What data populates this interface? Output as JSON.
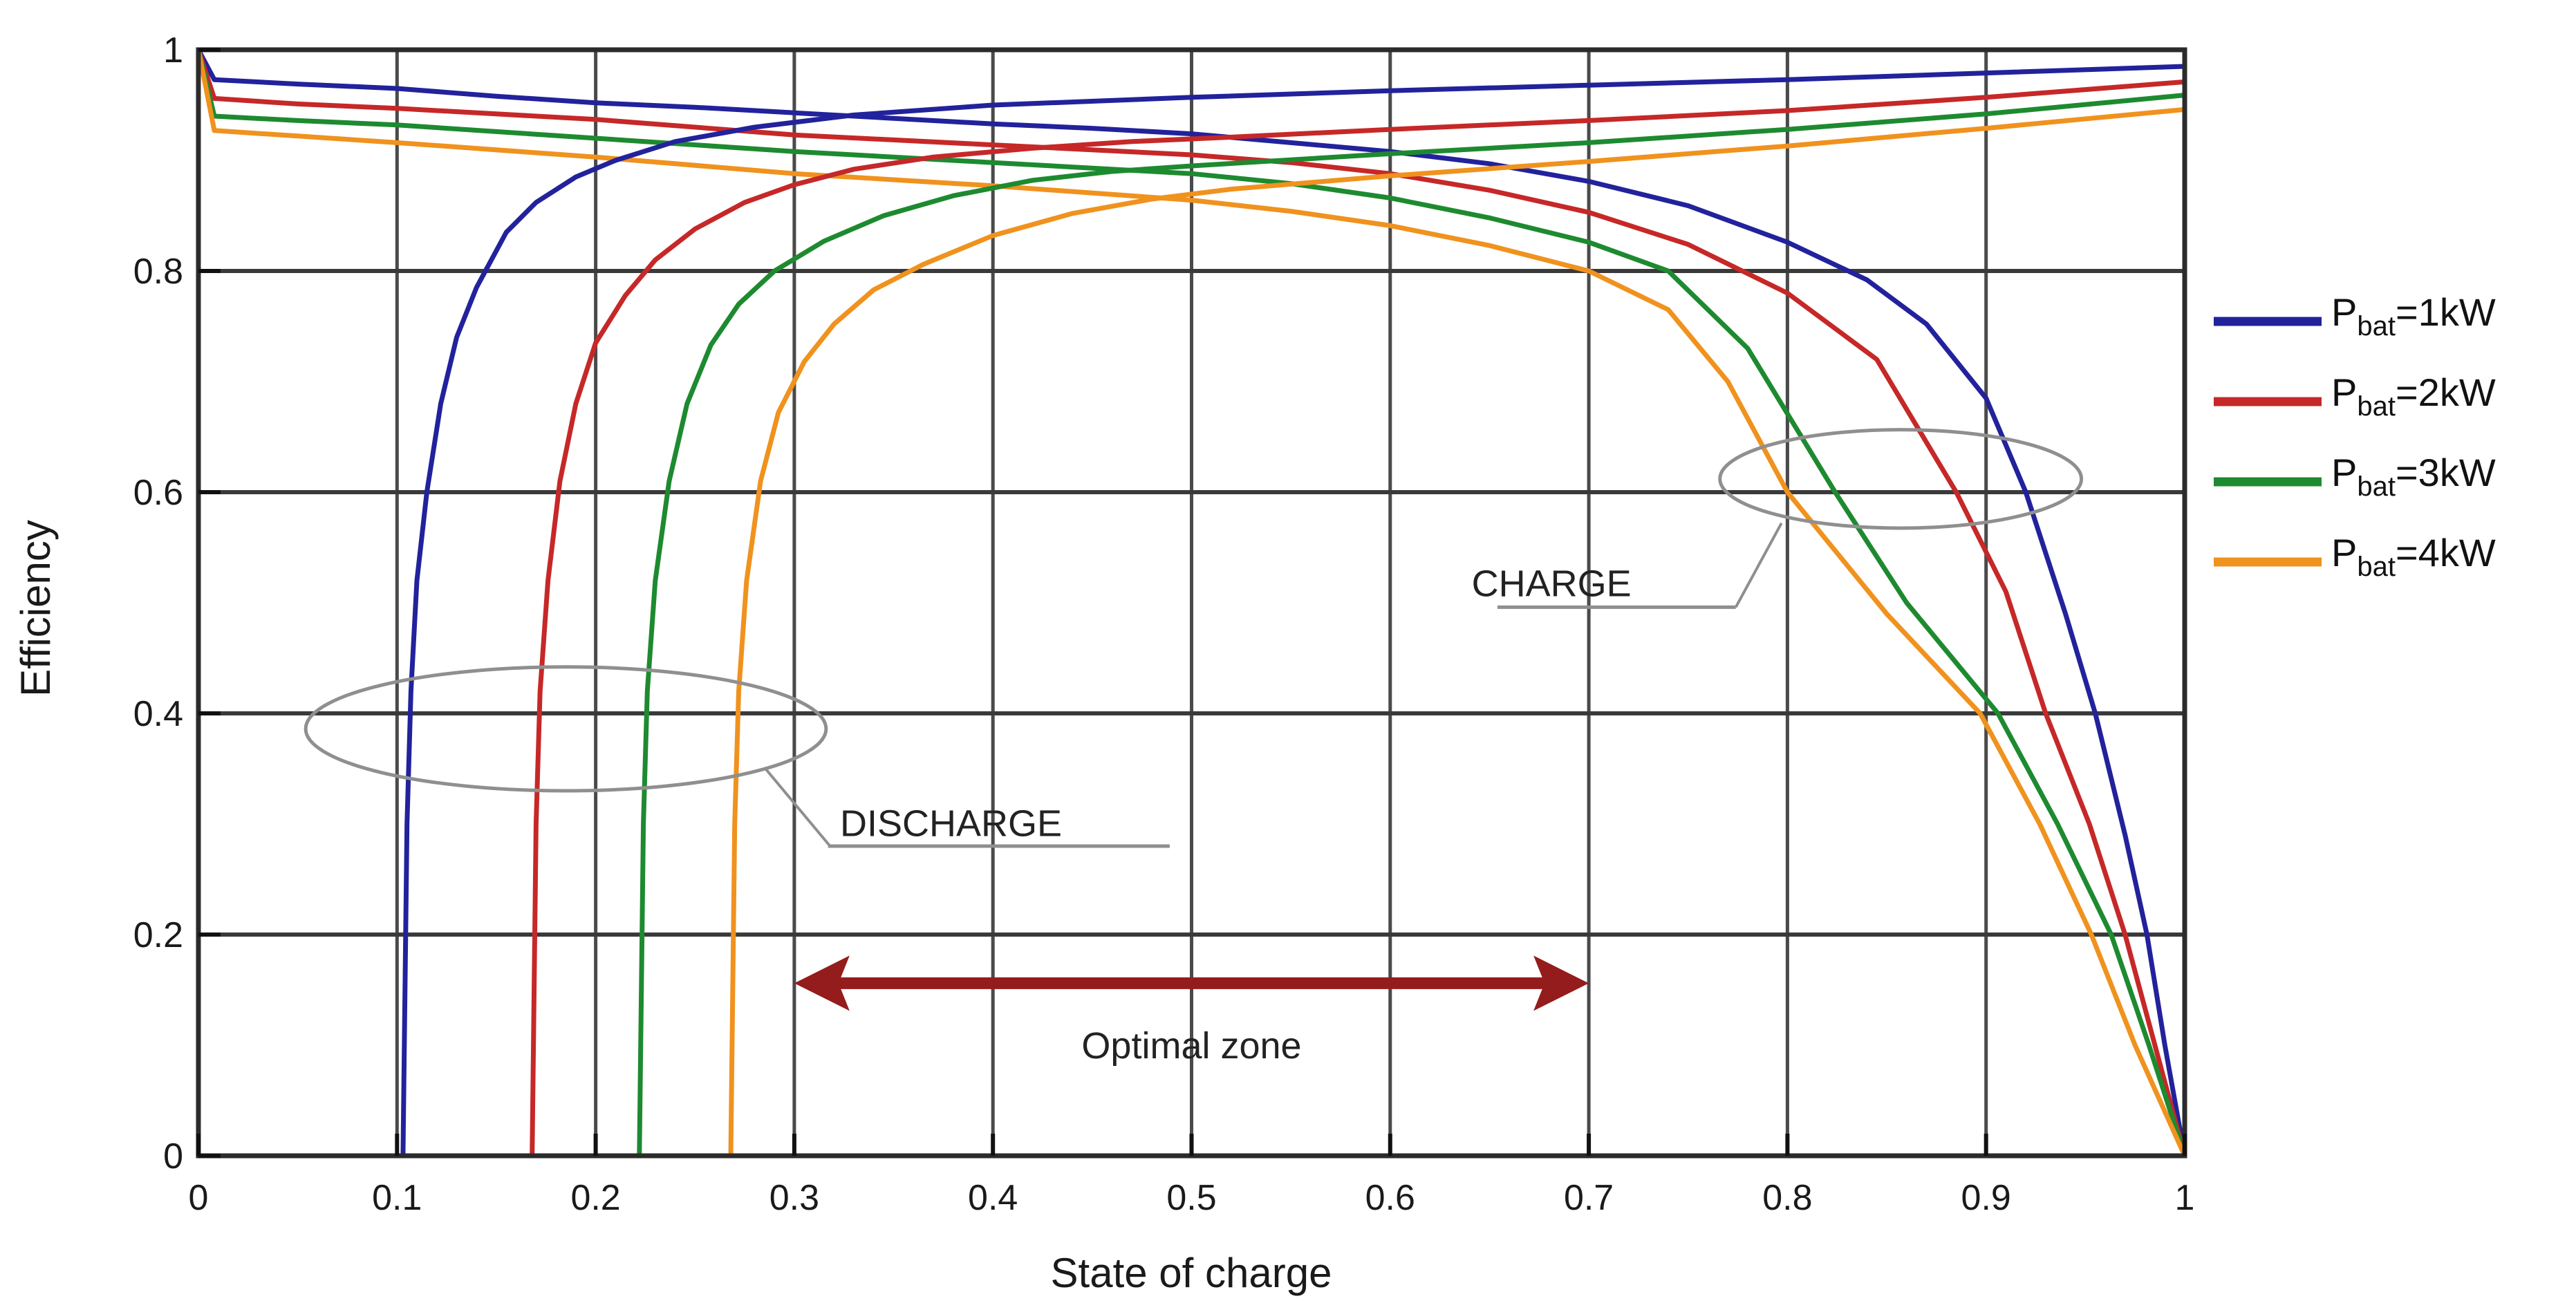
{
  "chart_data": {
    "type": "line",
    "title": "",
    "xlabel": "State of charge",
    "ylabel": "Efficiency",
    "xlim": [
      0,
      1
    ],
    "ylim": [
      0,
      1
    ],
    "grid": true,
    "legend_position": "right-outside",
    "x_ticks": [
      {
        "value": 0,
        "label": "0"
      },
      {
        "value": 0.1,
        "label": "0.1"
      },
      {
        "value": 0.2,
        "label": "0.2"
      },
      {
        "value": 0.3,
        "label": "0.3"
      },
      {
        "value": 0.4,
        "label": "0.4"
      },
      {
        "value": 0.5,
        "label": "0.5"
      },
      {
        "value": 0.6,
        "label": "0.6"
      },
      {
        "value": 0.7,
        "label": "0.7"
      },
      {
        "value": 0.8,
        "label": "0.8"
      },
      {
        "value": 0.9,
        "label": "0.9"
      },
      {
        "value": 1,
        "label": "1"
      }
    ],
    "y_ticks": [
      {
        "value": 0,
        "label": "0"
      },
      {
        "value": 0.2,
        "label": "0.2"
      },
      {
        "value": 0.4,
        "label": "0.4"
      },
      {
        "value": 0.6,
        "label": "0.6"
      },
      {
        "value": 0.8,
        "label": "0.8"
      },
      {
        "value": 1,
        "label": "1"
      }
    ],
    "colors": {
      "p1kW": "#22229c",
      "p2kW": "#c62828",
      "p3kW": "#1e8a30",
      "p4kW": "#f0921e",
      "grid": "#4a4a4a",
      "frame": "#2b2b2b",
      "annotation_gray": "#8f8f8f",
      "arrow_dark_red": "#951c1c"
    },
    "series": [
      {
        "name": "Pbat=1kW charge",
        "group": "CHARGE",
        "power_kW": 1,
        "color": "#22229c",
        "points": [
          [
            0,
            1
          ],
          [
            0.008,
            0.973
          ],
          [
            0.05,
            0.969
          ],
          [
            0.1,
            0.965
          ],
          [
            0.15,
            0.958
          ],
          [
            0.2,
            0.952
          ],
          [
            0.25,
            0.948
          ],
          [
            0.3,
            0.943
          ],
          [
            0.35,
            0.938
          ],
          [
            0.4,
            0.933
          ],
          [
            0.45,
            0.929
          ],
          [
            0.5,
            0.924
          ],
          [
            0.55,
            0.916
          ],
          [
            0.6,
            0.908
          ],
          [
            0.65,
            0.897
          ],
          [
            0.7,
            0.881
          ],
          [
            0.75,
            0.859
          ],
          [
            0.8,
            0.826
          ],
          [
            0.84,
            0.792
          ],
          [
            0.87,
            0.752
          ],
          [
            0.9,
            0.685
          ],
          [
            0.92,
            0.6
          ],
          [
            0.94,
            0.49
          ],
          [
            0.955,
            0.4
          ],
          [
            0.97,
            0.29
          ],
          [
            0.981,
            0.2
          ],
          [
            0.99,
            0.1
          ],
          [
            1,
            0
          ]
        ]
      },
      {
        "name": "Pbat=2kW charge",
        "group": "CHARGE",
        "power_kW": 2,
        "color": "#c62828",
        "points": [
          [
            0,
            1
          ],
          [
            0.008,
            0.956
          ],
          [
            0.05,
            0.951
          ],
          [
            0.1,
            0.947
          ],
          [
            0.2,
            0.937
          ],
          [
            0.3,
            0.923
          ],
          [
            0.4,
            0.914
          ],
          [
            0.5,
            0.905
          ],
          [
            0.55,
            0.898
          ],
          [
            0.6,
            0.888
          ],
          [
            0.65,
            0.873
          ],
          [
            0.7,
            0.853
          ],
          [
            0.75,
            0.824
          ],
          [
            0.8,
            0.78
          ],
          [
            0.845,
            0.72
          ],
          [
            0.885,
            0.6
          ],
          [
            0.91,
            0.51
          ],
          [
            0.93,
            0.4
          ],
          [
            0.952,
            0.3
          ],
          [
            0.97,
            0.2
          ],
          [
            0.985,
            0.1
          ],
          [
            1,
            0
          ]
        ]
      },
      {
        "name": "Pbat=3kW charge",
        "group": "CHARGE",
        "power_kW": 3,
        "color": "#1e8a30",
        "points": [
          [
            0,
            1
          ],
          [
            0.008,
            0.94
          ],
          [
            0.05,
            0.936
          ],
          [
            0.1,
            0.932
          ],
          [
            0.2,
            0.92
          ],
          [
            0.3,
            0.908
          ],
          [
            0.4,
            0.898
          ],
          [
            0.5,
            0.888
          ],
          [
            0.55,
            0.879
          ],
          [
            0.6,
            0.866
          ],
          [
            0.65,
            0.848
          ],
          [
            0.7,
            0.826
          ],
          [
            0.74,
            0.8
          ],
          [
            0.78,
            0.73
          ],
          [
            0.824,
            0.6
          ],
          [
            0.86,
            0.5
          ],
          [
            0.906,
            0.4
          ],
          [
            0.936,
            0.3
          ],
          [
            0.963,
            0.2
          ],
          [
            0.982,
            0.1
          ],
          [
            1,
            0
          ]
        ]
      },
      {
        "name": "Pbat=4kW charge",
        "group": "CHARGE",
        "power_kW": 4,
        "color": "#f0921e",
        "points": [
          [
            0,
            1
          ],
          [
            0.008,
            0.927
          ],
          [
            0.05,
            0.922
          ],
          [
            0.1,
            0.916
          ],
          [
            0.2,
            0.903
          ],
          [
            0.3,
            0.888
          ],
          [
            0.4,
            0.877
          ],
          [
            0.5,
            0.864
          ],
          [
            0.55,
            0.854
          ],
          [
            0.6,
            0.841
          ],
          [
            0.65,
            0.823
          ],
          [
            0.7,
            0.8
          ],
          [
            0.74,
            0.765
          ],
          [
            0.77,
            0.7
          ],
          [
            0.8,
            0.6
          ],
          [
            0.85,
            0.49
          ],
          [
            0.897,
            0.4
          ],
          [
            0.927,
            0.3
          ],
          [
            0.953,
            0.2
          ],
          [
            0.975,
            0.1
          ],
          [
            1,
            0
          ]
        ]
      },
      {
        "name": "Pbat=1kW discharge",
        "group": "DISCHARGE",
        "power_kW": 1,
        "color": "#22229c",
        "points": [
          [
            0.103,
            0
          ],
          [
            0.105,
            0.3
          ],
          [
            0.107,
            0.42
          ],
          [
            0.11,
            0.52
          ],
          [
            0.115,
            0.6
          ],
          [
            0.122,
            0.68
          ],
          [
            0.13,
            0.74
          ],
          [
            0.14,
            0.785
          ],
          [
            0.155,
            0.835
          ],
          [
            0.17,
            0.862
          ],
          [
            0.19,
            0.885
          ],
          [
            0.21,
            0.9
          ],
          [
            0.24,
            0.917
          ],
          [
            0.28,
            0.93
          ],
          [
            0.33,
            0.941
          ],
          [
            0.4,
            0.95
          ],
          [
            0.5,
            0.957
          ],
          [
            0.6,
            0.963
          ],
          [
            0.7,
            0.968
          ],
          [
            0.8,
            0.973
          ],
          [
            0.9,
            0.979
          ],
          [
            1,
            0.985
          ]
        ]
      },
      {
        "name": "Pbat=2kW discharge",
        "group": "DISCHARGE",
        "power_kW": 2,
        "color": "#c62828",
        "points": [
          [
            0.168,
            0
          ],
          [
            0.17,
            0.3
          ],
          [
            0.172,
            0.42
          ],
          [
            0.176,
            0.52
          ],
          [
            0.182,
            0.61
          ],
          [
            0.19,
            0.68
          ],
          [
            0.2,
            0.735
          ],
          [
            0.215,
            0.778
          ],
          [
            0.23,
            0.81
          ],
          [
            0.25,
            0.838
          ],
          [
            0.275,
            0.862
          ],
          [
            0.3,
            0.878
          ],
          [
            0.33,
            0.892
          ],
          [
            0.37,
            0.903
          ],
          [
            0.42,
            0.911
          ],
          [
            0.47,
            0.917
          ],
          [
            0.52,
            0.921
          ],
          [
            0.6,
            0.928
          ],
          [
            0.7,
            0.936
          ],
          [
            0.8,
            0.945
          ],
          [
            0.9,
            0.957
          ],
          [
            1,
            0.971
          ]
        ]
      },
      {
        "name": "Pbat=3kW discharge",
        "group": "DISCHARGE",
        "power_kW": 3,
        "color": "#1e8a30",
        "points": [
          [
            0.222,
            0
          ],
          [
            0.224,
            0.3
          ],
          [
            0.226,
            0.42
          ],
          [
            0.23,
            0.52
          ],
          [
            0.237,
            0.61
          ],
          [
            0.246,
            0.68
          ],
          [
            0.258,
            0.733
          ],
          [
            0.272,
            0.77
          ],
          [
            0.29,
            0.8
          ],
          [
            0.315,
            0.827
          ],
          [
            0.345,
            0.85
          ],
          [
            0.38,
            0.868
          ],
          [
            0.42,
            0.882
          ],
          [
            0.46,
            0.89
          ],
          [
            0.5,
            0.895
          ],
          [
            0.6,
            0.906
          ],
          [
            0.7,
            0.916
          ],
          [
            0.8,
            0.928
          ],
          [
            0.9,
            0.942
          ],
          [
            1,
            0.959
          ]
        ]
      },
      {
        "name": "Pbat=4kW discharge",
        "group": "DISCHARGE",
        "power_kW": 4,
        "color": "#f0921e",
        "points": [
          [
            0.268,
            0
          ],
          [
            0.27,
            0.3
          ],
          [
            0.272,
            0.42
          ],
          [
            0.276,
            0.52
          ],
          [
            0.283,
            0.61
          ],
          [
            0.292,
            0.672
          ],
          [
            0.305,
            0.718
          ],
          [
            0.32,
            0.752
          ],
          [
            0.34,
            0.783
          ],
          [
            0.365,
            0.806
          ],
          [
            0.4,
            0.832
          ],
          [
            0.44,
            0.852
          ],
          [
            0.48,
            0.865
          ],
          [
            0.52,
            0.874
          ],
          [
            0.6,
            0.886
          ],
          [
            0.7,
            0.899
          ],
          [
            0.8,
            0.913
          ],
          [
            0.9,
            0.929
          ],
          [
            1,
            0.946
          ]
        ]
      }
    ],
    "legend": [
      {
        "prefix": "P",
        "sub": "bat",
        "rest": "=1kW",
        "color": "#22229c"
      },
      {
        "prefix": "P",
        "sub": "bat",
        "rest": "=2kW",
        "color": "#c62828"
      },
      {
        "prefix": "P",
        "sub": "bat",
        "rest": "=3kW",
        "color": "#1e8a30"
      },
      {
        "prefix": "P",
        "sub": "bat",
        "rest": "=4kW",
        "color": "#f0921e"
      }
    ],
    "annotations": {
      "discharge": {
        "label": "DISCHARGE",
        "ellipse": {
          "cx": 0.185,
          "cy": 0.386,
          "rx": 0.131,
          "ry": 0.056
        },
        "label_anchor": {
          "x": 0.323,
          "y": 0.289
        },
        "underline": {
          "x1": 0.317,
          "x2": 0.489,
          "y": 0.28
        },
        "leader": [
          [
            0.285,
            0.351
          ],
          [
            0.318,
            0.28
          ]
        ]
      },
      "charge": {
        "label": "CHARGE",
        "ellipse": {
          "cx": 0.857,
          "cy": 0.612,
          "rx": 0.091,
          "ry": 0.0445
        },
        "label_anchor": {
          "x": 0.641,
          "y": 0.506
        },
        "underline": {
          "x1": 0.654,
          "x2": 0.774,
          "y": 0.496
        },
        "leader": [
          [
            0.774,
            0.496
          ],
          [
            0.797,
            0.572
          ]
        ]
      },
      "optimal_zone": {
        "label": "Optimal zone",
        "x_start": 0.3,
        "x_end": 0.7,
        "y": 0.156,
        "label_x": 0.5,
        "label_y": 0.088,
        "color": "#951c1c"
      }
    }
  }
}
